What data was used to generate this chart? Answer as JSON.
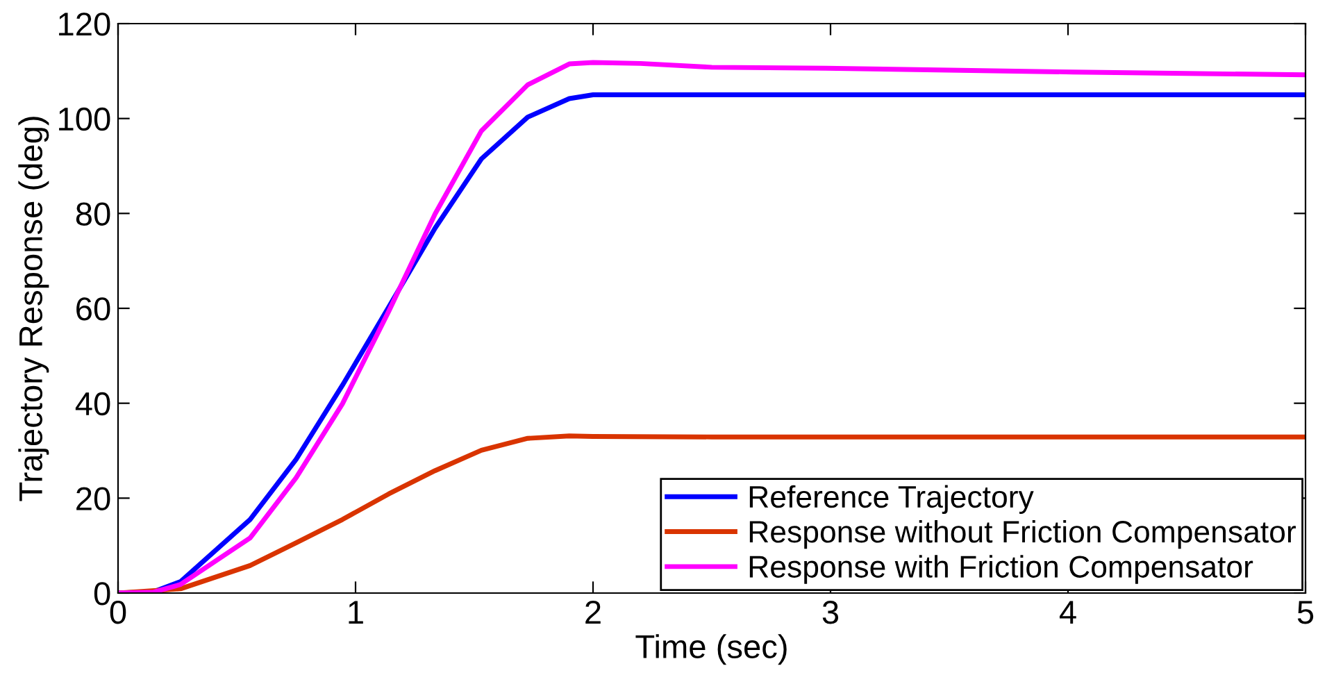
{
  "chart_data": {
    "type": "line",
    "xlabel": "Time (sec)",
    "ylabel": "Trajectory Response (deg)",
    "xlim": [
      0,
      5
    ],
    "ylim": [
      0,
      120
    ],
    "xticks": [
      0,
      1,
      2,
      3,
      4,
      5
    ],
    "yticks": [
      0,
      20,
      40,
      60,
      80,
      100,
      120
    ],
    "grid": false,
    "legend": "bottom right",
    "line_style": "solid",
    "marker": "none",
    "series": [
      {
        "name": "Reference Trajectory",
        "color": "#0000ff",
        "x": [
          0,
          0.15,
          0.263,
          0.556,
          0.75,
          0.945,
          1.14,
          1.335,
          1.53,
          1.725,
          1.9,
          2.0,
          2.5,
          3,
          4,
          5
        ],
        "values": [
          0,
          0.3,
          2.4,
          15.5,
          28.2,
          43.8,
          60.3,
          76.9,
          91.5,
          100.3,
          104.2,
          105,
          105,
          105,
          105,
          105
        ]
      },
      {
        "name": "Response without Friction Compensator",
        "color": "#d93400",
        "x": [
          0,
          0.263,
          0.556,
          0.75,
          0.945,
          1.14,
          1.335,
          1.53,
          1.725,
          1.9,
          2.0,
          2.5,
          3,
          4,
          5
        ],
        "values": [
          0,
          0.9,
          5.8,
          10.6,
          15.5,
          20.9,
          25.8,
          30.1,
          32.6,
          33.1,
          33,
          32.9,
          32.9,
          32.9,
          32.9
        ]
      },
      {
        "name": "Response with Friction Compensator",
        "color": "#ff00ff",
        "x": [
          0,
          0.15,
          0.263,
          0.556,
          0.75,
          0.945,
          1.14,
          1.335,
          1.53,
          1.725,
          1.9,
          2.0,
          2.2,
          2.5,
          2.98,
          3.5,
          4.02,
          4.5,
          5
        ],
        "values": [
          0,
          0.2,
          1.8,
          11.6,
          24.3,
          39.9,
          59.4,
          79.9,
          97.4,
          107.1,
          111.5,
          111.8,
          111.6,
          110.8,
          110.6,
          110.2,
          109.8,
          109.5,
          109.2
        ]
      }
    ]
  }
}
